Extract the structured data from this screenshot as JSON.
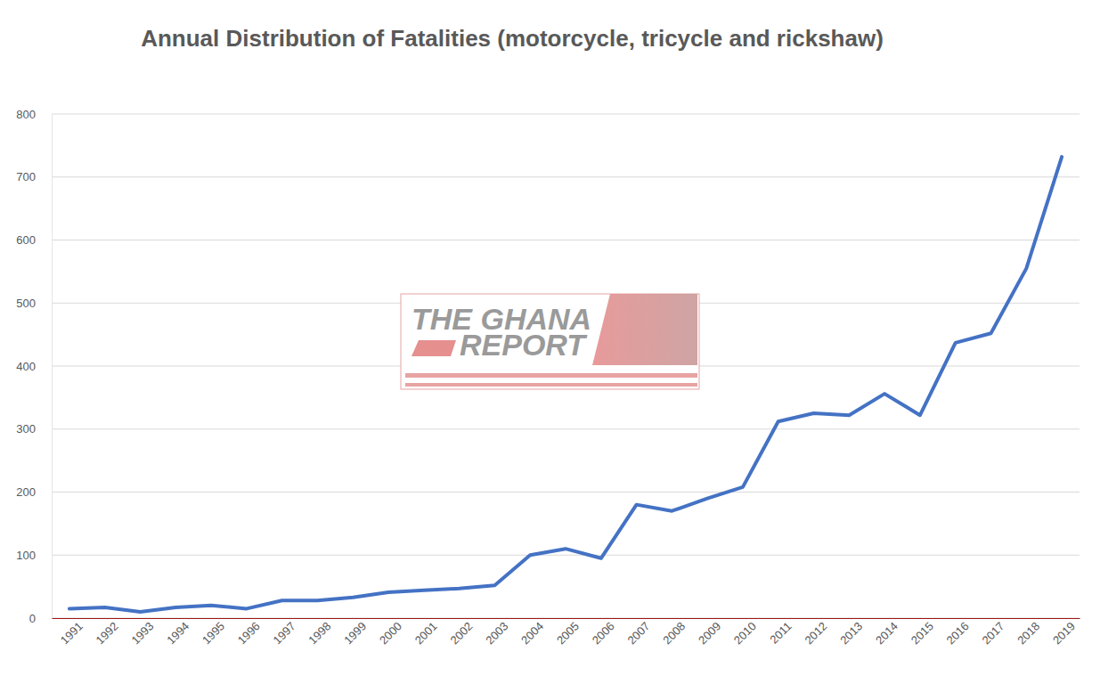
{
  "chart_data": {
    "type": "line",
    "title": "Annual Distribution of Fatalities (motorcycle, tricycle and rickshaw)",
    "annotations": [
      "THE GHANA",
      "REPORT"
    ],
    "categories": [
      "1991",
      "1992",
      "1993",
      "1994",
      "1995",
      "1996",
      "1997",
      "1998",
      "1999",
      "2000",
      "2001",
      "2002",
      "2003",
      "2004",
      "2005",
      "2006",
      "2007",
      "2008",
      "2009",
      "2010",
      "2011",
      "2012",
      "2013",
      "2014",
      "2015",
      "2016",
      "2017",
      "2018",
      "2019"
    ],
    "values": [
      15,
      17,
      10,
      17,
      20,
      15,
      28,
      28,
      33,
      41,
      44,
      47,
      52,
      100,
      110,
      95,
      180,
      170,
      190,
      208,
      312,
      325,
      322,
      356,
      322,
      437,
      452,
      555,
      732
    ],
    "color": "#4472c4",
    "ylim": [
      0,
      800
    ],
    "yticks": [
      0,
      100,
      200,
      300,
      400,
      500,
      600,
      700,
      800
    ],
    "grid": true
  }
}
